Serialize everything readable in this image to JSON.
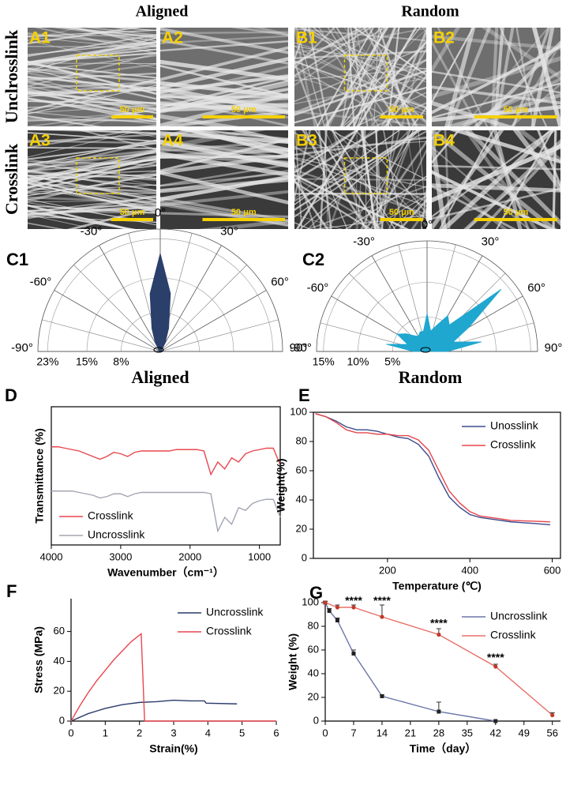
{
  "figure": {
    "headers": [
      "Aligned",
      "Random"
    ],
    "row_labels": [
      "Unclrosslink",
      "Crosslink"
    ],
    "sub_headers": [
      "Aligned",
      "Random"
    ],
    "images": [
      {
        "label": "A1",
        "scale": "50 μm"
      },
      {
        "label": "A2",
        "scale": "50 μm"
      },
      {
        "label": "B1",
        "scale": "50 μm"
      },
      {
        "label": "B2",
        "scale": "50 μm"
      },
      {
        "label": "A3",
        "scale": "50 μm"
      },
      {
        "label": "A4",
        "scale": "50 μm"
      },
      {
        "label": "B3",
        "scale": "50 μm"
      },
      {
        "label": "B4",
        "scale": "50 μm"
      }
    ]
  },
  "chart_data": [
    {
      "type": "polar",
      "label": "C1",
      "color": "#2b3f6b",
      "theta": [
        -90,
        -80,
        -70,
        -60,
        -50,
        -40,
        -30,
        -20,
        -10,
        0,
        10,
        20,
        30,
        40,
        50,
        60,
        70,
        80,
        90
      ],
      "values": [
        0.3,
        0.3,
        0.3,
        0.3,
        0.3,
        0.5,
        2,
        5,
        12,
        20,
        12,
        5,
        2,
        0.5,
        0.3,
        0.3,
        0.3,
        0.3,
        0.3
      ],
      "thetaticks": [
        {
          "value": -90,
          "label": "-90°"
        },
        {
          "value": -60,
          "label": "-60°"
        },
        {
          "value": -30,
          "label": "-30°"
        },
        {
          "value": 0,
          "label": "0°"
        },
        {
          "value": 30,
          "label": "30°"
        },
        {
          "value": 60,
          "label": "60°"
        },
        {
          "value": 90,
          "label": "90°"
        }
      ],
      "rlim": [
        0,
        25
      ],
      "rticks": [
        {
          "value": 23,
          "label": "23%"
        },
        {
          "value": 15,
          "label": "15%"
        },
        {
          "value": 8,
          "label": "8%"
        }
      ]
    },
    {
      "type": "polar",
      "label": "C2",
      "color": "#1fa7d0",
      "theta": [
        -90,
        -80,
        -70,
        -60,
        -50,
        -40,
        -30,
        -20,
        -10,
        0,
        10,
        20,
        30,
        40,
        50,
        60,
        70,
        80,
        90
      ],
      "values": [
        2,
        6,
        3,
        5,
        4,
        3,
        2.5,
        3,
        3,
        5.5,
        3,
        4,
        6,
        5,
        14,
        7,
        4,
        8,
        3
      ],
      "thetaticks": [
        {
          "value": -90,
          "label": "-90°"
        },
        {
          "value": -60,
          "label": "-60°"
        },
        {
          "value": -30,
          "label": "-30°"
        },
        {
          "value": 0,
          "label": "0°"
        },
        {
          "value": 30,
          "label": "30°"
        },
        {
          "value": 60,
          "label": "60°"
        },
        {
          "value": 90,
          "label": "90°"
        }
      ],
      "rlim": [
        0,
        16
      ],
      "rticks": [
        {
          "value": 15,
          "label": "15%"
        },
        {
          "value": 10,
          "label": "10%"
        },
        {
          "value": 5,
          "label": "5%"
        }
      ]
    },
    {
      "type": "line",
      "label": "D",
      "frame": true,
      "legend": "lower left",
      "x_label": "Wavenumber（cm⁻¹）",
      "y_label": "Transmittance (%)",
      "x": [
        4000,
        3900,
        3800,
        3700,
        3600,
        3500,
        3400,
        3300,
        3200,
        3100,
        3000,
        2900,
        2800,
        2700,
        2600,
        2500,
        2400,
        2300,
        2200,
        2100,
        2000,
        1900,
        1800,
        1700,
        1600,
        1500,
        1400,
        1300,
        1200,
        1100,
        1000,
        900,
        800,
        700
      ],
      "xlim": [
        4000,
        700
      ],
      "xticks": [
        4000,
        3000,
        2000,
        1000
      ],
      "ylim": [
        0,
        100
      ],
      "yticks": [],
      "series": [
        {
          "name": "Crosslink",
          "color": "#e8474f",
          "values": [
            71,
            71,
            70,
            69,
            68,
            66,
            64,
            62,
            64,
            67,
            66,
            64,
            67,
            68,
            68,
            68,
            68,
            68,
            69,
            69,
            69,
            69,
            68,
            51,
            60,
            55,
            63,
            60,
            66,
            68,
            69,
            70,
            70,
            58
          ]
        },
        {
          "name": "Uncrosslink",
          "color": "#a3a6b4",
          "values": [
            39,
            39,
            39,
            39,
            38,
            37,
            36,
            34,
            35,
            37,
            37,
            35,
            37,
            38,
            38,
            38,
            38,
            38,
            38,
            38,
            38,
            38,
            38,
            37,
            10,
            20,
            15,
            27,
            25,
            30,
            32,
            33,
            33,
            20
          ]
        }
      ]
    },
    {
      "type": "line",
      "label": "E",
      "frame": true,
      "legend": "upper right",
      "x_label": "Temperature (℃)",
      "y_label": "Weight(%)",
      "x": [
        25,
        50,
        75,
        100,
        125,
        150,
        175,
        200,
        225,
        250,
        275,
        300,
        325,
        350,
        375,
        400,
        425,
        450,
        475,
        500,
        550,
        595
      ],
      "xlim": [
        20,
        620
      ],
      "xticks": [
        200,
        400,
        600
      ],
      "ylim": [
        0,
        100
      ],
      "yticks": [
        0,
        20,
        40,
        60,
        80,
        100
      ],
      "series": [
        {
          "name": "Unosslink",
          "color": "#3b4a8c",
          "values": [
            99,
            97,
            94,
            90,
            88,
            88,
            87,
            85,
            83,
            82,
            78,
            70,
            55,
            42,
            35,
            30,
            28,
            27,
            26,
            25,
            24,
            23
          ]
        },
        {
          "name": "Crosslink",
          "color": "#e8474f",
          "values": [
            99,
            97,
            93,
            88,
            86,
            86,
            85,
            85,
            84,
            84,
            81,
            74,
            60,
            46,
            38,
            32,
            29,
            28,
            27,
            26,
            25.5,
            25
          ]
        }
      ]
    },
    {
      "type": "line",
      "label": "F",
      "frame": false,
      "legend": "upper right",
      "x_label": "Strain(%)",
      "y_label": "Stress (MPa)",
      "xlim": [
        0,
        6
      ],
      "xticks": [
        0,
        1,
        2,
        3,
        4,
        5,
        6
      ],
      "ylim": [
        0,
        82
      ],
      "yticks": [
        0,
        20,
        40,
        60
      ],
      "series": [
        {
          "name": "Uncrosslink",
          "color": "#2a3a6b",
          "x": [
            0,
            0.5,
            1,
            1.5,
            2,
            2.5,
            3,
            3.5,
            3.9,
            3.95,
            4.85
          ],
          "values": [
            0,
            5,
            8.5,
            11,
            12.5,
            13,
            14,
            13.5,
            13.5,
            12,
            11.5
          ]
        },
        {
          "name": "Crosslink",
          "color": "#e8474f",
          "x": [
            0,
            0.25,
            0.5,
            0.75,
            1,
            1.25,
            1.5,
            1.75,
            2.05,
            2.1,
            2.15,
            6
          ],
          "values": [
            0,
            10,
            19,
            27,
            34,
            41,
            47,
            53,
            58.5,
            30,
            0,
            0
          ]
        }
      ]
    },
    {
      "type": "line",
      "label": "G",
      "frame": false,
      "legend": "upper right",
      "x_label": "Time（day）",
      "y_label": "Weight (%)",
      "xlim": [
        0,
        58
      ],
      "xticks": [
        0,
        7,
        14,
        21,
        28,
        35,
        42,
        49,
        56
      ],
      "ylim": [
        0,
        100
      ],
      "yticks": [
        0,
        20,
        40,
        60,
        80,
        100
      ],
      "series": [
        {
          "name": "Uncrosslink",
          "color": "#6b76a8",
          "marker": "square",
          "x": [
            0,
            1,
            3,
            7,
            14,
            28,
            42
          ],
          "values": [
            100,
            93,
            85,
            57,
            21,
            8,
            0
          ],
          "errors": [
            1,
            2,
            2,
            3,
            1,
            8,
            0
          ]
        },
        {
          "name": "Crosslink",
          "color": "#e8706a",
          "marker": "circle",
          "x": [
            0,
            3,
            7,
            14,
            28,
            42,
            56
          ],
          "values": [
            100,
            96,
            96,
            88,
            73,
            46,
            5
          ],
          "errors": [
            1,
            2,
            2,
            10,
            5,
            2,
            2
          ]
        }
      ],
      "annotations": [
        {
          "text": "****",
          "x": 7,
          "y": 101
        },
        {
          "text": "****",
          "x": 14,
          "y": 101
        },
        {
          "text": "****",
          "x": 28,
          "y": 82
        },
        {
          "text": "****",
          "x": 42,
          "y": 53
        }
      ]
    }
  ]
}
